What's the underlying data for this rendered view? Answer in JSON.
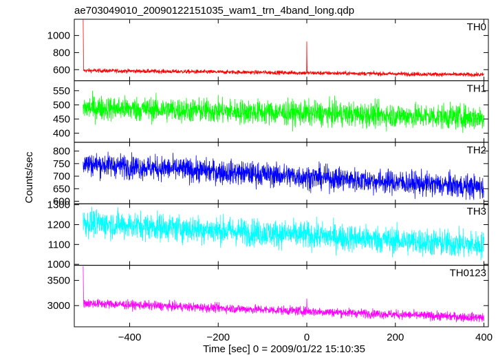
{
  "chart_data": {
    "type": "line",
    "title": "ae703049010_20090122151035_wam1_trn_4band_long.qdp",
    "xlabel": "Time [sec] 0 = 2009/01/22 15:10:35",
    "ylabel": "Counts/sec",
    "xlim": [
      -525,
      410
    ],
    "x_ticks": [
      -400,
      -200,
      0,
      200,
      400
    ],
    "x_tick_labels": [
      "−400",
      "−200",
      "0",
      "200",
      "400"
    ],
    "x_start": -505,
    "x_end": 400,
    "grid": false,
    "panels": [
      {
        "name": "TH0",
        "color": "#ff0000",
        "ylim": [
          470,
          1190
        ],
        "yticks": [
          600,
          800,
          1000
        ],
        "ytick_labels": [
          "600",
          "800",
          "1000"
        ],
        "level_start": 590,
        "level_end": 540,
        "noise": 12,
        "spikes": [
          {
            "x": -505,
            "y": 1185
          },
          {
            "x": 0,
            "y": 930
          }
        ]
      },
      {
        "name": "TH1",
        "color": "#00ff00",
        "ylim": [
          368,
          585
        ],
        "yticks": [
          400,
          450,
          500,
          550
        ],
        "ytick_labels": [
          "400",
          "450",
          "500",
          "550"
        ],
        "level_start": 490,
        "level_end": 455,
        "noise": 22,
        "spikes": []
      },
      {
        "name": "TH2",
        "color": "#0000ff",
        "ylim": [
          590,
          835
        ],
        "yticks": [
          600,
          650,
          700,
          750,
          800
        ],
        "ytick_labels": [
          "600",
          "650",
          "700",
          "750",
          "800"
        ],
        "level_start": 750,
        "level_end": 655,
        "noise": 24,
        "spikes": []
      },
      {
        "name": "TH3",
        "color": "#00ffff",
        "ylim": [
          995,
          1305
        ],
        "yticks": [
          1000,
          1100,
          1200,
          1300
        ],
        "ytick_labels": [
          "1000",
          "1100",
          "1200",
          "1300"
        ],
        "level_start": 1210,
        "level_end": 1095,
        "noise": 35,
        "spikes": []
      },
      {
        "name": "TH0123",
        "color": "#ff00ff",
        "ylim": [
          2580,
          3800
        ],
        "yticks": [
          3000,
          3500
        ],
        "ytick_labels": [
          "3000",
          "3500"
        ],
        "level_start": 3050,
        "level_end": 2760,
        "noise": 45,
        "spikes": [
          {
            "x": -505,
            "y": 3780
          },
          {
            "x": 0,
            "y": 3140
          }
        ]
      }
    ]
  }
}
